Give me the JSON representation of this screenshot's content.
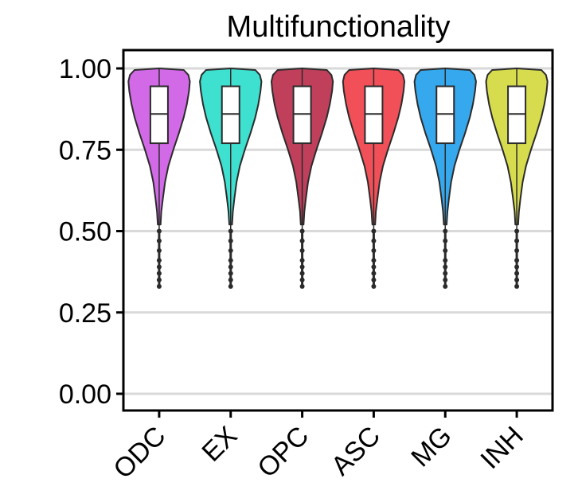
{
  "chart_data": {
    "type": "violin",
    "title": "Multifunctionality",
    "xlabel": "",
    "ylabel": "",
    "ylim": [
      0,
      1.055
    ],
    "y_ticks": [
      "0.00",
      "0.25",
      "0.50",
      "0.75",
      "1.00"
    ],
    "y_tick_values": [
      0,
      0.25,
      0.5,
      0.75,
      1.0
    ],
    "grid": "horizontal",
    "categories": [
      "ODC",
      "EX",
      "OPC",
      "ASC",
      "MG",
      "INH"
    ],
    "colors": [
      "#D269E6",
      "#3EE0D0",
      "#C0405C",
      "#F25058",
      "#36A8EE",
      "#D6DC4E"
    ],
    "series": [
      {
        "category": "ODC",
        "min": 0.33,
        "q1": 0.77,
        "median": 0.86,
        "q3": 0.945,
        "whisker_high": 1.0,
        "max": 1.0
      },
      {
        "category": "EX",
        "min": 0.33,
        "q1": 0.77,
        "median": 0.86,
        "q3": 0.945,
        "whisker_high": 1.0,
        "max": 1.0
      },
      {
        "category": "OPC",
        "min": 0.33,
        "q1": 0.77,
        "median": 0.86,
        "q3": 0.945,
        "whisker_high": 1.0,
        "max": 1.0
      },
      {
        "category": "ASC",
        "min": 0.33,
        "q1": 0.77,
        "median": 0.86,
        "q3": 0.945,
        "whisker_high": 1.0,
        "max": 1.0
      },
      {
        "category": "MG",
        "min": 0.33,
        "q1": 0.77,
        "median": 0.86,
        "q3": 0.945,
        "whisker_high": 1.0,
        "max": 1.0
      },
      {
        "category": "INH",
        "min": 0.33,
        "q1": 0.77,
        "median": 0.86,
        "q3": 0.945,
        "whisker_high": 1.0,
        "max": 1.0
      }
    ]
  }
}
